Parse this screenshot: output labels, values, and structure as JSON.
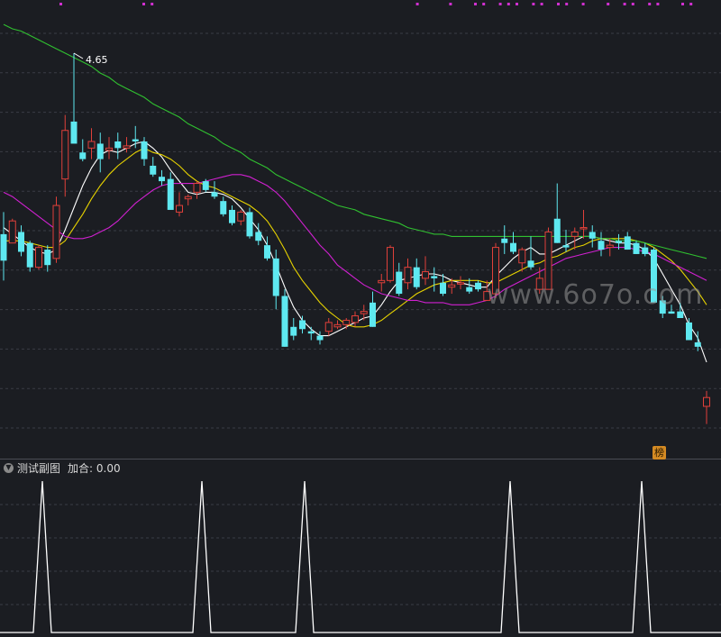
{
  "colors": {
    "background": "#1b1d22",
    "grid": "#3a3d45",
    "up_candle": "#e0403a",
    "down_candle": "#5ee8f0",
    "ma_white": "#ffffff",
    "ma_yellow": "#e6d200",
    "ma_magenta": "#d020d0",
    "ma_green": "#30c030",
    "indicator_line": "#ffffff",
    "signal_dot": "#d030d0"
  },
  "main_panel": {
    "peak_label": "4.65",
    "watermark": "www.6o7o.com",
    "badge_text": "榜"
  },
  "sub_panel": {
    "title": "测试副图",
    "value_label": "加合: 0.00",
    "toggle_icon": "chevron-down-icon"
  },
  "chart_data": [
    {
      "type": "candlestick",
      "title": "",
      "price_high_label": 4.65,
      "ylim": [
        2.85,
        4.85
      ],
      "candles_ohlc": [
        [
          3.83,
          3.93,
          3.62,
          3.71
        ],
        [
          3.79,
          3.9,
          3.79,
          3.89
        ],
        [
          3.84,
          3.87,
          3.73,
          3.75
        ],
        [
          3.79,
          3.8,
          3.66,
          3.68
        ],
        [
          3.68,
          3.78,
          3.67,
          3.77
        ],
        [
          3.76,
          3.78,
          3.66,
          3.69
        ],
        [
          3.72,
          4.0,
          3.7,
          3.96
        ],
        [
          4.08,
          4.37,
          4.0,
          4.3
        ],
        [
          4.34,
          4.65,
          4.25,
          4.24
        ],
        [
          4.2,
          4.26,
          4.16,
          4.17
        ],
        [
          4.22,
          4.31,
          4.17,
          4.25
        ],
        [
          4.24,
          4.29,
          4.11,
          4.17
        ],
        [
          4.21,
          4.27,
          4.17,
          4.22
        ],
        [
          4.25,
          4.29,
          4.17,
          4.22
        ],
        [
          4.22,
          4.27,
          4.2,
          4.23
        ],
        [
          4.26,
          4.32,
          4.22,
          4.25
        ],
        [
          4.25,
          4.27,
          4.14,
          4.17
        ],
        [
          4.14,
          4.18,
          4.09,
          4.1
        ],
        [
          4.09,
          4.12,
          4.05,
          4.07
        ],
        [
          4.08,
          4.11,
          3.94,
          3.94
        ],
        [
          3.93,
          4.02,
          3.91,
          3.96
        ],
        [
          3.99,
          4.01,
          3.96,
          4.0
        ],
        [
          4.02,
          4.07,
          3.99,
          4.06
        ],
        [
          4.07,
          4.08,
          4.02,
          4.03
        ],
        [
          4.02,
          4.07,
          3.99,
          4.0
        ],
        [
          3.98,
          4.0,
          3.91,
          3.92
        ],
        [
          3.94,
          3.96,
          3.87,
          3.88
        ],
        [
          3.89,
          3.94,
          3.87,
          3.93
        ],
        [
          3.93,
          3.95,
          3.81,
          3.82
        ],
        [
          3.84,
          3.88,
          3.78,
          3.8
        ],
        [
          3.78,
          3.82,
          3.71,
          3.72
        ],
        [
          3.72,
          3.76,
          3.49,
          3.55
        ],
        [
          3.55,
          3.58,
          3.32,
          3.32
        ],
        [
          3.41,
          3.45,
          3.35,
          3.37
        ],
        [
          3.44,
          3.46,
          3.38,
          3.4
        ],
        [
          3.39,
          3.41,
          3.35,
          3.38
        ],
        [
          3.37,
          3.39,
          3.33,
          3.35
        ],
        [
          3.39,
          3.45,
          3.37,
          3.43
        ],
        [
          3.41,
          3.44,
          3.4,
          3.42
        ],
        [
          3.42,
          3.45,
          3.4,
          3.44
        ],
        [
          3.43,
          3.48,
          3.41,
          3.46
        ],
        [
          3.47,
          3.51,
          3.44,
          3.48
        ],
        [
          3.52,
          3.57,
          3.41,
          3.41
        ],
        [
          3.61,
          3.65,
          3.57,
          3.62
        ],
        [
          3.62,
          3.78,
          3.61,
          3.77
        ],
        [
          3.66,
          3.7,
          3.55,
          3.56
        ],
        [
          3.61,
          3.72,
          3.58,
          3.68
        ],
        [
          3.68,
          3.72,
          3.58,
          3.59
        ],
        [
          3.63,
          3.73,
          3.6,
          3.66
        ],
        [
          3.64,
          3.68,
          3.57,
          3.63
        ],
        [
          3.61,
          3.65,
          3.55,
          3.56
        ],
        [
          3.59,
          3.63,
          3.56,
          3.6
        ],
        [
          3.61,
          3.64,
          3.58,
          3.61
        ],
        [
          3.59,
          3.63,
          3.56,
          3.57
        ],
        [
          3.61,
          3.62,
          3.57,
          3.58
        ],
        [
          3.53,
          3.62,
          3.53,
          3.57
        ],
        [
          3.56,
          3.79,
          3.54,
          3.77
        ],
        [
          3.81,
          3.87,
          3.74,
          3.79
        ],
        [
          3.79,
          3.84,
          3.74,
          3.75
        ],
        [
          3.7,
          3.77,
          3.66,
          3.76
        ],
        [
          3.71,
          3.82,
          3.67,
          3.68
        ],
        [
          3.58,
          3.68,
          3.56,
          3.63
        ],
        [
          3.58,
          3.86,
          3.58,
          3.84
        ],
        [
          3.9,
          4.06,
          3.79,
          3.79
        ],
        [
          3.78,
          3.85,
          3.75,
          3.77
        ],
        [
          3.82,
          3.86,
          3.76,
          3.84
        ],
        [
          3.86,
          3.94,
          3.81,
          3.86
        ],
        [
          3.84,
          3.87,
          3.77,
          3.81
        ],
        [
          3.8,
          3.84,
          3.73,
          3.76
        ],
        [
          3.77,
          3.81,
          3.73,
          3.78
        ],
        [
          3.8,
          3.83,
          3.76,
          3.79
        ],
        [
          3.82,
          3.84,
          3.76,
          3.76
        ],
        [
          3.79,
          3.8,
          3.74,
          3.74
        ],
        [
          3.77,
          3.79,
          3.73,
          3.74
        ],
        [
          3.76,
          3.77,
          3.52,
          3.52
        ],
        [
          3.53,
          3.55,
          3.45,
          3.47
        ],
        [
          3.48,
          3.51,
          3.47,
          3.47
        ],
        [
          3.48,
          3.52,
          3.45,
          3.45
        ],
        [
          3.43,
          3.45,
          3.35,
          3.35
        ],
        [
          3.34,
          3.39,
          3.3,
          3.32
        ],
        [
          3.05,
          3.12,
          2.97,
          3.09
        ]
      ],
      "moving_averages": [
        {
          "color_key": "ma_white",
          "values": [
            3.86,
            3.83,
            3.8,
            3.77,
            3.75,
            3.74,
            3.76,
            3.85,
            3.95,
            4.05,
            4.13,
            4.19,
            4.21,
            4.2,
            4.22,
            4.24,
            4.25,
            4.22,
            4.18,
            4.12,
            4.07,
            4.02,
            4.01,
            4.02,
            4.02,
            4.01,
            3.99,
            3.95,
            3.9,
            3.85,
            3.78,
            3.69,
            3.59,
            3.5,
            3.44,
            3.4,
            3.37,
            3.37,
            3.39,
            3.41,
            3.43,
            3.45,
            3.46,
            3.51,
            3.57,
            3.62,
            3.63,
            3.64,
            3.65,
            3.65,
            3.64,
            3.62,
            3.61,
            3.6,
            3.59,
            3.59,
            3.64,
            3.68,
            3.72,
            3.75,
            3.77,
            3.74,
            3.74,
            3.76,
            3.78,
            3.8,
            3.82,
            3.82,
            3.81,
            3.8,
            3.79,
            3.79,
            3.78,
            3.76,
            3.72,
            3.65,
            3.58,
            3.51,
            3.42,
            3.36,
            3.25
          ]
        },
        {
          "color_key": "ma_yellow",
          "values": [
            3.8,
            3.8,
            3.8,
            3.79,
            3.78,
            3.77,
            3.77,
            3.8,
            3.86,
            3.92,
            3.99,
            4.05,
            4.1,
            4.14,
            4.17,
            4.2,
            4.22,
            4.2,
            4.19,
            4.17,
            4.14,
            4.1,
            4.07,
            4.05,
            4.04,
            4.02,
            4.0,
            3.98,
            3.96,
            3.93,
            3.89,
            3.83,
            3.76,
            3.68,
            3.62,
            3.57,
            3.52,
            3.48,
            3.45,
            3.42,
            3.41,
            3.41,
            3.42,
            3.44,
            3.47,
            3.5,
            3.53,
            3.56,
            3.58,
            3.6,
            3.61,
            3.62,
            3.62,
            3.62,
            3.62,
            3.61,
            3.61,
            3.63,
            3.65,
            3.67,
            3.69,
            3.7,
            3.72,
            3.73,
            3.75,
            3.77,
            3.78,
            3.8,
            3.81,
            3.81,
            3.81,
            3.81,
            3.8,
            3.79,
            3.77,
            3.74,
            3.71,
            3.67,
            3.62,
            3.57,
            3.51
          ]
        },
        {
          "color_key": "ma_magenta",
          "values": [
            4.02,
            4.0,
            3.97,
            3.94,
            3.91,
            3.88,
            3.85,
            3.82,
            3.81,
            3.81,
            3.82,
            3.84,
            3.86,
            3.89,
            3.93,
            3.97,
            4.0,
            4.03,
            4.05,
            4.06,
            4.06,
            4.06,
            4.06,
            4.07,
            4.08,
            4.09,
            4.1,
            4.1,
            4.09,
            4.07,
            4.05,
            4.02,
            3.98,
            3.93,
            3.88,
            3.83,
            3.78,
            3.74,
            3.69,
            3.66,
            3.63,
            3.6,
            3.58,
            3.56,
            3.55,
            3.54,
            3.53,
            3.53,
            3.52,
            3.52,
            3.52,
            3.51,
            3.51,
            3.51,
            3.52,
            3.53,
            3.55,
            3.58,
            3.6,
            3.62,
            3.64,
            3.66,
            3.68,
            3.7,
            3.72,
            3.73,
            3.74,
            3.75,
            3.76,
            3.77,
            3.77,
            3.77,
            3.76,
            3.75,
            3.74,
            3.72,
            3.7,
            3.68,
            3.66,
            3.64,
            3.62
          ]
        },
        {
          "color_key": "ma_green",
          "values": [
            4.78,
            4.76,
            4.75,
            4.73,
            4.71,
            4.69,
            4.67,
            4.65,
            4.63,
            4.61,
            4.59,
            4.56,
            4.54,
            4.51,
            4.49,
            4.47,
            4.45,
            4.42,
            4.4,
            4.38,
            4.36,
            4.33,
            4.31,
            4.29,
            4.27,
            4.24,
            4.22,
            4.2,
            4.17,
            4.15,
            4.13,
            4.1,
            4.08,
            4.06,
            4.04,
            4.02,
            4.0,
            3.98,
            3.96,
            3.95,
            3.94,
            3.92,
            3.91,
            3.9,
            3.89,
            3.88,
            3.86,
            3.85,
            3.84,
            3.83,
            3.83,
            3.82,
            3.82,
            3.82,
            3.82,
            3.82,
            3.82,
            3.82,
            3.82,
            3.82,
            3.82,
            3.82,
            3.82,
            3.82,
            3.82,
            3.82,
            3.82,
            3.82,
            3.81,
            3.81,
            3.8,
            3.8,
            3.8,
            3.79,
            3.78,
            3.77,
            3.76,
            3.75,
            3.74,
            3.73,
            3.72
          ]
        }
      ],
      "signal_dot_indices": [
        8,
        18,
        19,
        51,
        55,
        58,
        59,
        61,
        62,
        63,
        65,
        66,
        68,
        69,
        71,
        74,
        76,
        77,
        79,
        80,
        83,
        84,
        90,
        91,
        92
      ],
      "grid": true
    },
    {
      "type": "line",
      "title": "测试副图",
      "value_label": "加合: 0.00",
      "spike_indices": [
        5,
        27,
        41,
        69,
        87
      ],
      "baseline": 0,
      "peak": 1,
      "grid": true
    }
  ]
}
